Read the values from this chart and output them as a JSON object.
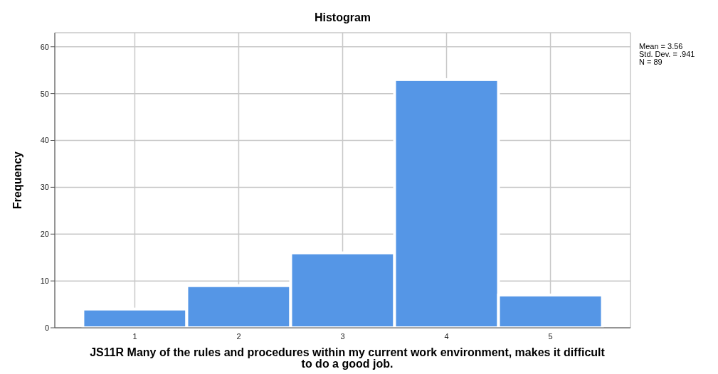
{
  "chart_data": {
    "type": "histogram",
    "title": "Histogram",
    "xlabel": "JS11R  Many of the rules and procedures within my current work environment, makes it difficult to do a good job.",
    "ylabel": "Frequency",
    "bins": [
      0.5,
      1.5,
      2.5,
      3.5,
      4.5,
      5.5
    ],
    "values": [
      4,
      9,
      16,
      53,
      7
    ],
    "color": "#5596e6",
    "xlim": [
      0.23,
      5.77
    ],
    "xticks": [
      1,
      2,
      3,
      4,
      5
    ],
    "ylim": [
      0,
      63
    ],
    "yticks": [
      0,
      10,
      20,
      30,
      40,
      50,
      60
    ],
    "grid": true,
    "annotations": [
      "Mean = 3.56",
      "Std. Dev. = .941",
      "N = 89"
    ]
  }
}
